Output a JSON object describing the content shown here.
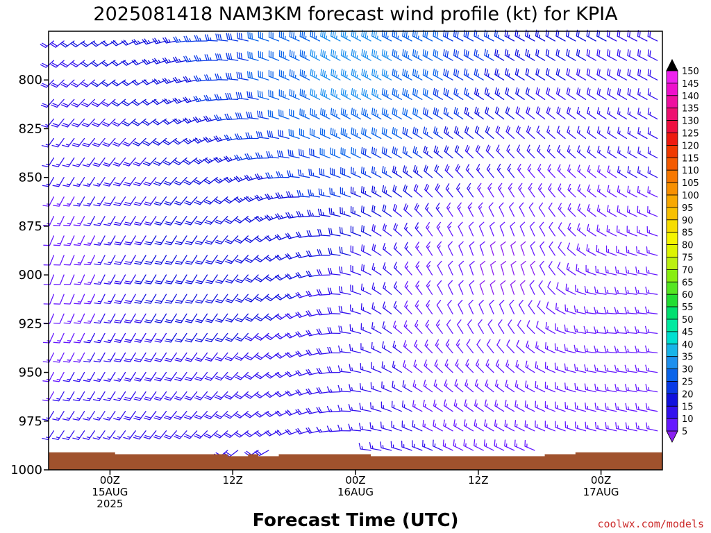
{
  "title": "2025081418 NAM3KM forecast wind profile (kt) for KPIA",
  "credit": "coolwx.com/models",
  "chart_data": {
    "type": "wind_barb_time_height",
    "xlabel": "Forecast Time (UTC)",
    "x_ticks": [
      {
        "hour": 6,
        "lines": [
          "00Z",
          "15AUG",
          "2025"
        ]
      },
      {
        "hour": 18,
        "lines": [
          "12Z"
        ]
      },
      {
        "hour": 30,
        "lines": [
          "00Z",
          "16AUG"
        ]
      },
      {
        "hour": 42,
        "lines": [
          "12Z"
        ]
      },
      {
        "hour": 54,
        "lines": [
          "00Z",
          "17AUG"
        ]
      }
    ],
    "x_range_hours": [
      0,
      60
    ],
    "y_range_mb": [
      1000,
      775
    ],
    "y_ticks": [
      "800",
      "825",
      "850",
      "875",
      "900",
      "925",
      "950",
      "975",
      "1000"
    ],
    "surface_pressure_mb": [
      991,
      991,
      991,
      991,
      991,
      991,
      991,
      992,
      992,
      992,
      992,
      992,
      992,
      992,
      992,
      992,
      992,
      992,
      993,
      993,
      992,
      993,
      993,
      992,
      992,
      992,
      992,
      992,
      992,
      992,
      992,
      992,
      993,
      993,
      993,
      993,
      993,
      993,
      993,
      993,
      993,
      993,
      993,
      993,
      993,
      993,
      993,
      993,
      993,
      992,
      992,
      992,
      991,
      991,
      991,
      991,
      991,
      991,
      991,
      991,
      991
    ],
    "terrain_color": "#a0522d",
    "colorbar": {
      "levels": [
        5,
        10,
        15,
        20,
        25,
        30,
        35,
        40,
        45,
        50,
        55,
        60,
        65,
        70,
        75,
        80,
        85,
        90,
        95,
        100,
        105,
        110,
        115,
        120,
        125,
        130,
        135,
        140,
        145,
        150
      ],
      "colors": [
        "#8a1ff0",
        "#6619ff",
        "#3311ee",
        "#1111dd",
        "#0a3ae6",
        "#0a64ea",
        "#1e90ee",
        "#18b4e8",
        "#00e0d0",
        "#00eaa0",
        "#00e070",
        "#22dd33",
        "#55e622",
        "#88ee11",
        "#bbf011",
        "#ddf400",
        "#f4f400",
        "#f6dd00",
        "#f8c000",
        "#f8a800",
        "#f89000",
        "#f77800",
        "#f45a00",
        "#f03a00",
        "#ee1a10",
        "#ee1040",
        "#ee1070",
        "#ee10a0",
        "#ee10cc",
        "#ee22ee"
      ]
    },
    "sample_winds": [
      {
        "hour": 0,
        "level_mb": 900,
        "dir_deg": 200,
        "speed_kt": 10
      },
      {
        "hour": 12,
        "level_mb": 900,
        "dir_deg": 210,
        "speed_kt": 22
      },
      {
        "hour": 30,
        "level_mb": 800,
        "dir_deg": 300,
        "speed_kt": 38
      },
      {
        "hour": 45,
        "level_mb": 900,
        "dir_deg": 350,
        "speed_kt": 8
      },
      {
        "hour": 55,
        "level_mb": 925,
        "dir_deg": 270,
        "speed_kt": 15
      }
    ]
  }
}
